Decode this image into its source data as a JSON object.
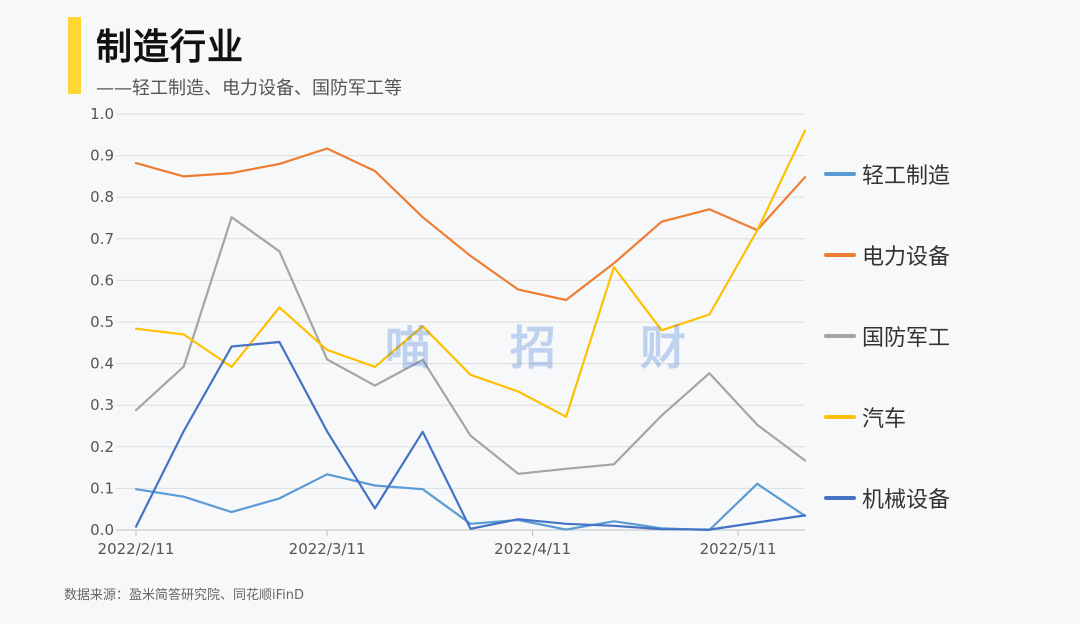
{
  "header": {
    "title": "制造行业",
    "subtitle": "——轻工制造、电力设备、国防军工等"
  },
  "watermark": [
    "喵",
    "招",
    "财"
  ],
  "source": "数据来源：盈米简答研究院、同花顺iFinD",
  "chart_data": {
    "type": "line",
    "x": [
      "2022/2/11",
      "2022/2/18",
      "2022/2/25",
      "2022/3/4",
      "2022/3/11",
      "2022/3/18",
      "2022/3/25",
      "2022/4/1",
      "2022/4/8",
      "2022/4/15",
      "2022/4/22",
      "2022/4/29",
      "2022/5/6",
      "2022/5/13",
      "2022/5/20"
    ],
    "xticks": [
      "2022/2/11",
      "2022/3/11",
      "2022/4/11",
      "2022/5/11"
    ],
    "xtick_positions": [
      0,
      4,
      8.3,
      12.6
    ],
    "ylim": [
      0,
      1.0
    ],
    "yticks": [
      "0.0",
      "0.1",
      "0.2",
      "0.3",
      "0.4",
      "0.5",
      "0.6",
      "0.7",
      "0.8",
      "0.9",
      "1.0"
    ],
    "grid": "horizontal",
    "legend": "right",
    "series": [
      {
        "name": "轻工制造",
        "color": "#5b9bd5",
        "values": [
          0.098,
          0.08,
          0.043,
          0.076,
          0.134,
          0.107,
          0.098,
          0.015,
          0.024,
          0.001,
          0.021,
          0.004,
          0.0,
          0.111,
          0.034
        ]
      },
      {
        "name": "电力设备",
        "color": "#ed7d31",
        "values": [
          0.882,
          0.85,
          0.858,
          0.88,
          0.917,
          0.863,
          0.752,
          0.659,
          0.578,
          0.553,
          0.641,
          0.741,
          0.771,
          0.721,
          0.848
        ]
      },
      {
        "name": "国防军工",
        "color": "#a5a5a5",
        "values": [
          0.288,
          0.393,
          0.752,
          0.67,
          0.41,
          0.347,
          0.409,
          0.227,
          0.135,
          0.147,
          0.158,
          0.275,
          0.377,
          0.253,
          0.167
        ]
      },
      {
        "name": "汽车",
        "color": "#ffc000",
        "values": [
          0.484,
          0.47,
          0.392,
          0.535,
          0.433,
          0.392,
          0.49,
          0.373,
          0.333,
          0.272,
          0.632,
          0.48,
          0.518,
          0.72,
          0.96
        ]
      },
      {
        "name": "机械设备",
        "color": "#4472c4",
        "values": [
          0.008,
          0.238,
          0.441,
          0.452,
          0.237,
          0.052,
          0.236,
          0.003,
          0.026,
          0.015,
          0.01,
          0.002,
          0.001,
          0.018,
          0.035
        ]
      }
    ]
  }
}
